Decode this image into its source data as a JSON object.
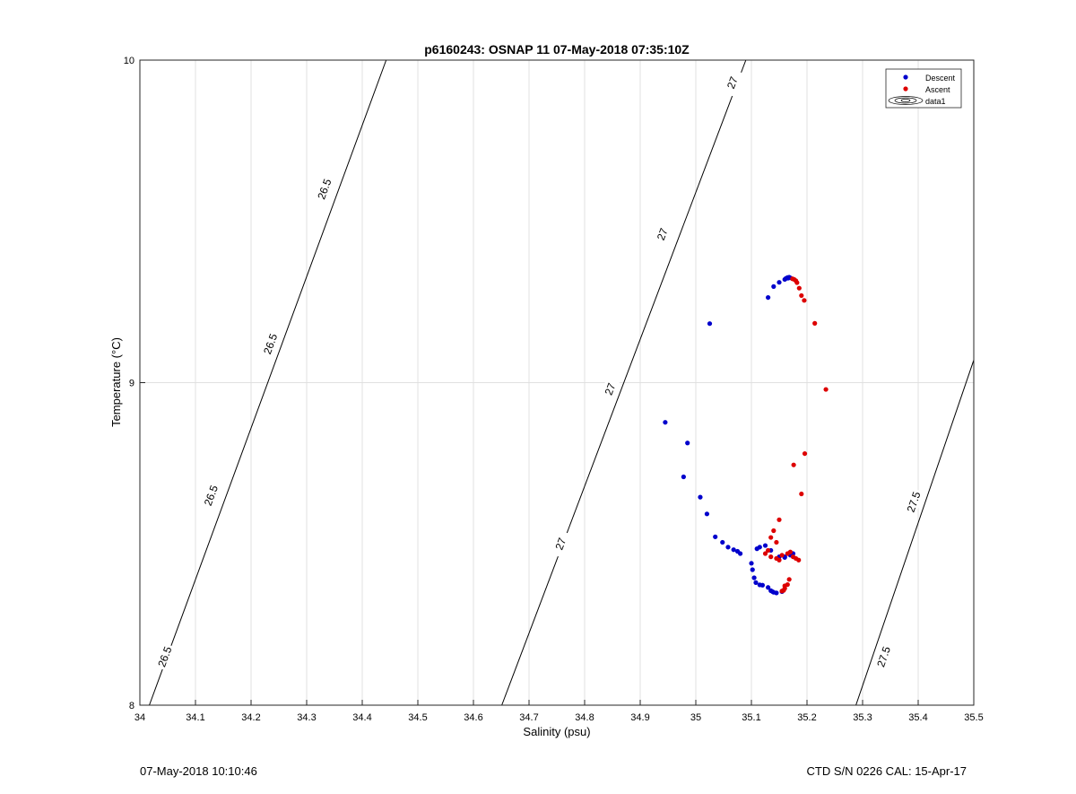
{
  "footer": {
    "timestamp": "07-May-2018 10:10:46",
    "instrument": "CTD S/N 0226  CAL: 15-Apr-17"
  },
  "chart_data": {
    "type": "scatter",
    "title": "p6160243: OSNAP 11 07-May-2018 07:35:10Z",
    "xlabel": "Salinity (psu)",
    "ylabel": "Temperature (°C)",
    "xlim": [
      34,
      35.5
    ],
    "ylim": [
      8,
      10
    ],
    "xticks": [
      "34",
      "34.1",
      "34.2",
      "34.3",
      "34.4",
      "34.5",
      "34.6",
      "34.7",
      "34.8",
      "34.9",
      "35",
      "35.1",
      "35.2",
      "35.3",
      "35.4",
      "35.5"
    ],
    "yticks": [
      "8",
      "9",
      "10"
    ],
    "grid": true,
    "legend_position": "top-right",
    "legend": [
      "Descent",
      "Ascent",
      "data1"
    ],
    "colors": {
      "descent": "#0000cc",
      "ascent": "#dd0000",
      "contour": "#000000",
      "grid": "#e0e0e0"
    },
    "contours": [
      {
        "label": "26.5",
        "points": [
          [
            34.017,
            8.0
          ],
          [
            34.443,
            10.0
          ]
        ],
        "label_positions": [
          [
            34.045,
            8.15
          ],
          [
            34.128,
            8.65
          ],
          [
            34.235,
            9.12
          ],
          [
            34.332,
            9.6
          ]
        ]
      },
      {
        "label": "27",
        "points": [
          [
            34.651,
            8.0
          ],
          [
            35.09,
            10.0
          ]
        ],
        "label_positions": [
          [
            34.757,
            8.5
          ],
          [
            34.846,
            8.98
          ],
          [
            34.94,
            9.46
          ],
          [
            35.066,
            9.93
          ]
        ]
      },
      {
        "label": "27.5",
        "points": [
          [
            35.288,
            8.0
          ],
          [
            35.5,
            9.07
          ]
        ],
        "label_positions": [
          [
            35.338,
            8.15
          ],
          [
            35.392,
            8.63
          ]
        ]
      }
    ],
    "series": [
      {
        "name": "Descent",
        "x": [
          35.162,
          35.165,
          35.168,
          35.17,
          35.166,
          35.16,
          35.15,
          35.14,
          35.13,
          35.025,
          34.945,
          34.985,
          34.978,
          35.008,
          35.02,
          35.035,
          35.048,
          35.058,
          35.068,
          35.075,
          35.08,
          35.1,
          35.102,
          35.105,
          35.108,
          35.115,
          35.12,
          35.13,
          35.135,
          35.138,
          35.14,
          35.145,
          35.155,
          35.16,
          35.17,
          35.175,
          35.11,
          35.115,
          35.125,
          35.135,
          35.15,
          35.16
        ],
        "y": [
          9.323,
          9.326,
          9.327,
          9.325,
          9.324,
          9.32,
          9.311,
          9.298,
          9.264,
          9.183,
          8.877,
          8.813,
          8.708,
          8.645,
          8.593,
          8.522,
          8.505,
          8.49,
          8.482,
          8.477,
          8.47,
          8.44,
          8.42,
          8.395,
          8.38,
          8.373,
          8.372,
          8.365,
          8.355,
          8.352,
          8.35,
          8.348,
          8.352,
          8.46,
          8.465,
          8.47,
          8.485,
          8.49,
          8.495,
          8.48,
          8.46,
          8.458
        ]
      },
      {
        "name": "Ascent",
        "x": [
          35.174,
          35.177,
          35.18,
          35.182,
          35.186,
          35.19,
          35.195,
          35.214,
          35.234,
          35.196,
          35.176,
          35.19,
          35.15,
          35.14,
          35.135,
          35.145,
          35.13,
          35.125,
          35.135,
          35.145,
          35.15,
          35.155,
          35.165,
          35.17,
          35.185,
          35.168,
          35.165,
          35.16,
          35.158,
          35.155,
          35.16,
          35.18,
          35.175
        ],
        "y": [
          9.322,
          9.32,
          9.316,
          9.31,
          9.293,
          9.27,
          9.255,
          9.184,
          8.979,
          8.78,
          8.745,
          8.655,
          8.575,
          8.541,
          8.52,
          8.505,
          8.48,
          8.47,
          8.46,
          8.455,
          8.45,
          8.465,
          8.47,
          8.475,
          8.45,
          8.39,
          8.374,
          8.362,
          8.356,
          8.354,
          8.37,
          8.455,
          8.46
        ]
      }
    ]
  }
}
